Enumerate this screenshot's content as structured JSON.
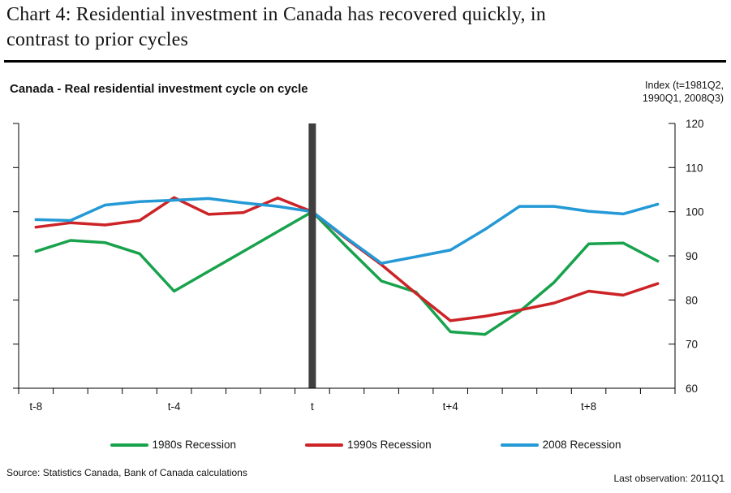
{
  "page": {
    "title_line1": "Chart 4: Residential investment in Canada has recovered quickly, in",
    "title_line2": "contrast to prior cycles",
    "source": "Source: Statistics Canada, Bank of Canada calculations",
    "last_observation": "Last observation: 2011Q1"
  },
  "chart_header": {
    "subtitle": "Canada - Real residential investment cycle on cycle",
    "index_note_line1": "Index (t=1981Q2,",
    "index_note_line2": "1990Q1, 2008Q3)"
  },
  "chart_data": {
    "type": "line",
    "title": "Canada - Real residential investment cycle on cycle",
    "x": [
      "t-8",
      "t-7",
      "t-6",
      "t-5",
      "t-4",
      "t-3",
      "t-2",
      "t-1",
      "t",
      "t+1",
      "t+2",
      "t+3",
      "t+4",
      "t+5",
      "t+6",
      "t+7",
      "t+8",
      "t+9",
      "t+10"
    ],
    "x_labeled_ticks": [
      0,
      4,
      8,
      12,
      16
    ],
    "x_labels": [
      "t-8",
      "t-4",
      "t",
      "t+4",
      "t+8"
    ],
    "ylim": [
      60,
      120
    ],
    "y_ticks": [
      60,
      70,
      80,
      90,
      100,
      110,
      120
    ],
    "y_axis_side": "right",
    "grid": false,
    "legend_position": "bottom",
    "event_marker": {
      "x_index": 8,
      "label": "t",
      "color": "#3f3f3f"
    },
    "series": [
      {
        "name": "1980s Recession",
        "color": "#18a24c",
        "values": [
          91.0,
          93.5,
          93.0,
          90.5,
          82.0,
          86.5,
          91.0,
          95.5,
          100.0,
          92.0,
          84.3,
          81.8,
          72.8,
          72.2,
          77.4,
          84.0,
          92.7,
          92.9,
          88.8
        ]
      },
      {
        "name": "1990s Recession",
        "color": "#cc2327",
        "values": [
          96.5,
          97.5,
          97.0,
          98.0,
          103.2,
          99.4,
          99.8,
          103.1,
          100.0,
          93.8,
          88.0,
          81.5,
          75.3,
          76.3,
          77.7,
          79.3,
          82.0,
          81.1,
          83.7
        ]
      },
      {
        "name": "2008 Recession",
        "color": "#2399d6",
        "values": [
          98.2,
          98.0,
          101.5,
          102.3,
          102.6,
          103.0,
          102.0,
          101.2,
          100.0,
          94.0,
          88.3,
          89.8,
          91.3,
          96.0,
          101.2,
          101.2,
          100.1,
          99.5,
          101.7
        ]
      }
    ]
  }
}
